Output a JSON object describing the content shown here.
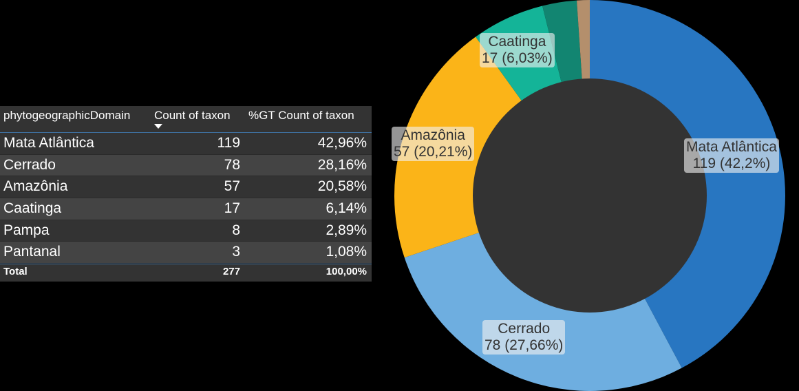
{
  "table": {
    "headers": [
      "phytogeographicDomain",
      "Count of taxon",
      "%GT Count of taxon"
    ],
    "sort_icon": "sort-descending-icon",
    "rows": [
      {
        "domain": "Mata Atlântica",
        "count": "119",
        "pct": "42,96%"
      },
      {
        "domain": "Cerrado",
        "count": "78",
        "pct": "28,16%"
      },
      {
        "domain": "Amazônia",
        "count": "57",
        "pct": "20,58%"
      },
      {
        "domain": "Caatinga",
        "count": "17",
        "pct": "6,14%"
      },
      {
        "domain": "Pampa",
        "count": "8",
        "pct": "2,89%"
      },
      {
        "domain": "Pantanal",
        "count": "3",
        "pct": "1,08%"
      }
    ],
    "total": {
      "label": "Total",
      "count": "277",
      "pct": "100,00%"
    }
  },
  "chart_data": {
    "type": "pie",
    "subtype": "donut",
    "categories": [
      "Mata Atlântica",
      "Cerrado",
      "Amazônia",
      "Caatinga",
      "Pampa",
      "Pantanal"
    ],
    "values": [
      119,
      78,
      57,
      17,
      8,
      3
    ],
    "colors": [
      "#2876c1",
      "#6eaee0",
      "#fbb418",
      "#14b498",
      "#128571",
      "#b48f6c"
    ],
    "hole_color": "#333333",
    "data_labels": [
      {
        "name": "Mata Atlântica",
        "value": "119 (42,2%)"
      },
      {
        "name": "Cerrado",
        "value": "78 (27,66%)"
      },
      {
        "name": "Amazônia",
        "value": "57 (20,21%)"
      },
      {
        "name": "Caatinga",
        "value": "17 (6,03%)"
      }
    ]
  }
}
